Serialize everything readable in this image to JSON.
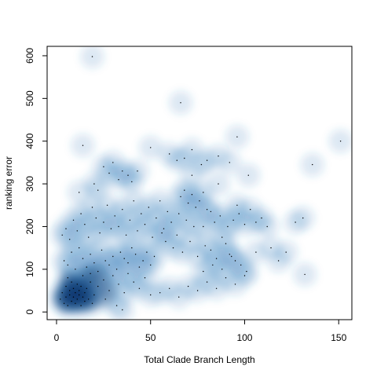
{
  "chart_data": {
    "type": "scatter",
    "style": "smoothed-density",
    "title": "",
    "xlabel": "Total Clade Branch Length",
    "ylabel": "ranking error",
    "xlim": [
      -5,
      157
    ],
    "ylim": [
      -18,
      622
    ],
    "xticks": [
      0,
      50,
      100,
      150
    ],
    "yticks": [
      0,
      100,
      200,
      300,
      400,
      500,
      600
    ],
    "xtick_labels": [
      "0",
      "50",
      "100",
      "150"
    ],
    "ytick_labels": [
      "0",
      "100",
      "200",
      "300",
      "400",
      "500",
      "600"
    ],
    "grid": false,
    "legend": "none",
    "colors": {
      "density": "#08306b",
      "density_mid": "#2171b5",
      "points": "#000000",
      "axis": "#000000"
    },
    "points": [
      [
        2,
        30
      ],
      [
        3,
        45
      ],
      [
        4,
        20
      ],
      [
        5,
        60
      ],
      [
        5,
        35
      ],
      [
        6,
        80
      ],
      [
        6,
        15
      ],
      [
        7,
        50
      ],
      [
        7,
        40
      ],
      [
        8,
        25
      ],
      [
        8,
        70
      ],
      [
        9,
        55
      ],
      [
        9,
        35
      ],
      [
        10,
        45
      ],
      [
        10,
        20
      ],
      [
        11,
        65
      ],
      [
        11,
        30
      ],
      [
        12,
        50
      ],
      [
        12,
        40
      ],
      [
        13,
        15
      ],
      [
        13,
        60
      ],
      [
        14,
        35
      ],
      [
        14,
        85
      ],
      [
        15,
        25
      ],
      [
        15,
        45
      ],
      [
        16,
        55
      ],
      [
        17,
        30
      ],
      [
        18,
        70
      ],
      [
        19,
        20
      ],
      [
        20,
        40
      ],
      [
        4,
        120
      ],
      [
        6,
        110
      ],
      [
        8,
        140
      ],
      [
        10,
        100
      ],
      [
        12,
        150
      ],
      [
        14,
        125
      ],
      [
        16,
        105
      ],
      [
        18,
        135
      ],
      [
        20,
        115
      ],
      [
        22,
        95
      ],
      [
        24,
        145
      ],
      [
        26,
        120
      ],
      [
        28,
        110
      ],
      [
        30,
        130
      ],
      [
        32,
        100
      ],
      [
        34,
        140
      ],
      [
        36,
        125
      ],
      [
        38,
        115
      ],
      [
        40,
        150
      ],
      [
        42,
        135
      ],
      [
        44,
        105
      ],
      [
        46,
        120
      ],
      [
        48,
        140
      ],
      [
        50,
        110
      ],
      [
        52,
        130
      ],
      [
        3,
        180
      ],
      [
        5,
        195
      ],
      [
        7,
        170
      ],
      [
        9,
        215
      ],
      [
        11,
        190
      ],
      [
        13,
        230
      ],
      [
        15,
        205
      ],
      [
        17,
        175
      ],
      [
        19,
        245
      ],
      [
        21,
        220
      ],
      [
        23,
        185
      ],
      [
        25,
        210
      ],
      [
        27,
        250
      ],
      [
        29,
        195
      ],
      [
        31,
        225
      ],
      [
        33,
        200
      ],
      [
        35,
        240
      ],
      [
        37,
        180
      ],
      [
        39,
        215
      ],
      [
        41,
        260
      ],
      [
        43,
        190
      ],
      [
        45,
        230
      ],
      [
        47,
        205
      ],
      [
        49,
        245
      ],
      [
        51,
        175
      ],
      [
        53,
        220
      ],
      [
        55,
        260
      ],
      [
        57,
        195
      ],
      [
        59,
        235
      ],
      [
        61,
        210
      ],
      [
        22,
        60
      ],
      [
        25,
        75
      ],
      [
        28,
        50
      ],
      [
        30,
        85
      ],
      [
        33,
        65
      ],
      [
        36,
        45
      ],
      [
        38,
        90
      ],
      [
        41,
        70
      ],
      [
        44,
        55
      ],
      [
        47,
        80
      ],
      [
        50,
        40
      ],
      [
        18,
        90
      ],
      [
        26,
        30
      ],
      [
        32,
        15
      ],
      [
        35,
        5
      ],
      [
        20,
        300
      ],
      [
        22,
        285
      ],
      [
        25,
        340
      ],
      [
        28,
        325
      ],
      [
        30,
        350
      ],
      [
        33,
        310
      ],
      [
        35,
        330
      ],
      [
        38,
        320
      ],
      [
        40,
        305
      ],
      [
        43,
        330
      ],
      [
        12,
        280
      ],
      [
        14,
        390
      ],
      [
        19,
        598
      ],
      [
        66,
        490
      ],
      [
        50,
        385
      ],
      [
        60,
        370
      ],
      [
        64,
        355
      ],
      [
        68,
        360
      ],
      [
        72,
        380
      ],
      [
        77,
        345
      ],
      [
        66,
        270
      ],
      [
        68,
        285
      ],
      [
        70,
        255
      ],
      [
        72,
        275
      ],
      [
        74,
        245
      ],
      [
        76,
        260
      ],
      [
        78,
        280
      ],
      [
        80,
        240
      ],
      [
        65,
        230
      ],
      [
        69,
        215
      ],
      [
        73,
        200
      ],
      [
        56,
        185
      ],
      [
        58,
        165
      ],
      [
        62,
        150
      ],
      [
        64,
        180
      ],
      [
        67,
        140
      ],
      [
        71,
        165
      ],
      [
        75,
        130
      ],
      [
        79,
        155
      ],
      [
        82,
        145
      ],
      [
        85,
        125
      ],
      [
        88,
        175
      ],
      [
        90,
        160
      ],
      [
        92,
        135
      ],
      [
        95,
        120
      ],
      [
        98,
        110
      ],
      [
        101,
        95
      ],
      [
        84,
        210
      ],
      [
        87,
        225
      ],
      [
        91,
        200
      ],
      [
        94,
        215
      ],
      [
        97,
        230
      ],
      [
        100,
        205
      ],
      [
        103,
        240
      ],
      [
        106,
        210
      ],
      [
        109,
        220
      ],
      [
        112,
        200
      ],
      [
        96,
        410
      ],
      [
        86,
        365
      ],
      [
        92,
        350
      ],
      [
        80,
        355
      ],
      [
        102,
        320
      ],
      [
        96,
        250
      ],
      [
        118,
        120
      ],
      [
        122,
        140
      ],
      [
        127,
        210
      ],
      [
        131,
        220
      ],
      [
        136,
        345
      ],
      [
        132,
        88
      ],
      [
        151,
        400
      ],
      [
        55,
        45
      ],
      [
        60,
        55
      ],
      [
        65,
        35
      ],
      [
        70,
        60
      ],
      [
        75,
        50
      ],
      [
        80,
        70
      ],
      [
        85,
        55
      ],
      [
        90,
        80
      ],
      [
        95,
        65
      ],
      [
        100,
        85
      ],
      [
        78,
        95
      ],
      [
        83,
        110
      ],
      [
        88,
        100
      ],
      [
        93,
        130
      ],
      [
        106,
        140
      ],
      [
        114,
        150
      ],
      [
        82,
        235
      ],
      [
        78,
        200
      ],
      [
        72,
        320
      ],
      [
        86,
        300
      ]
    ]
  }
}
